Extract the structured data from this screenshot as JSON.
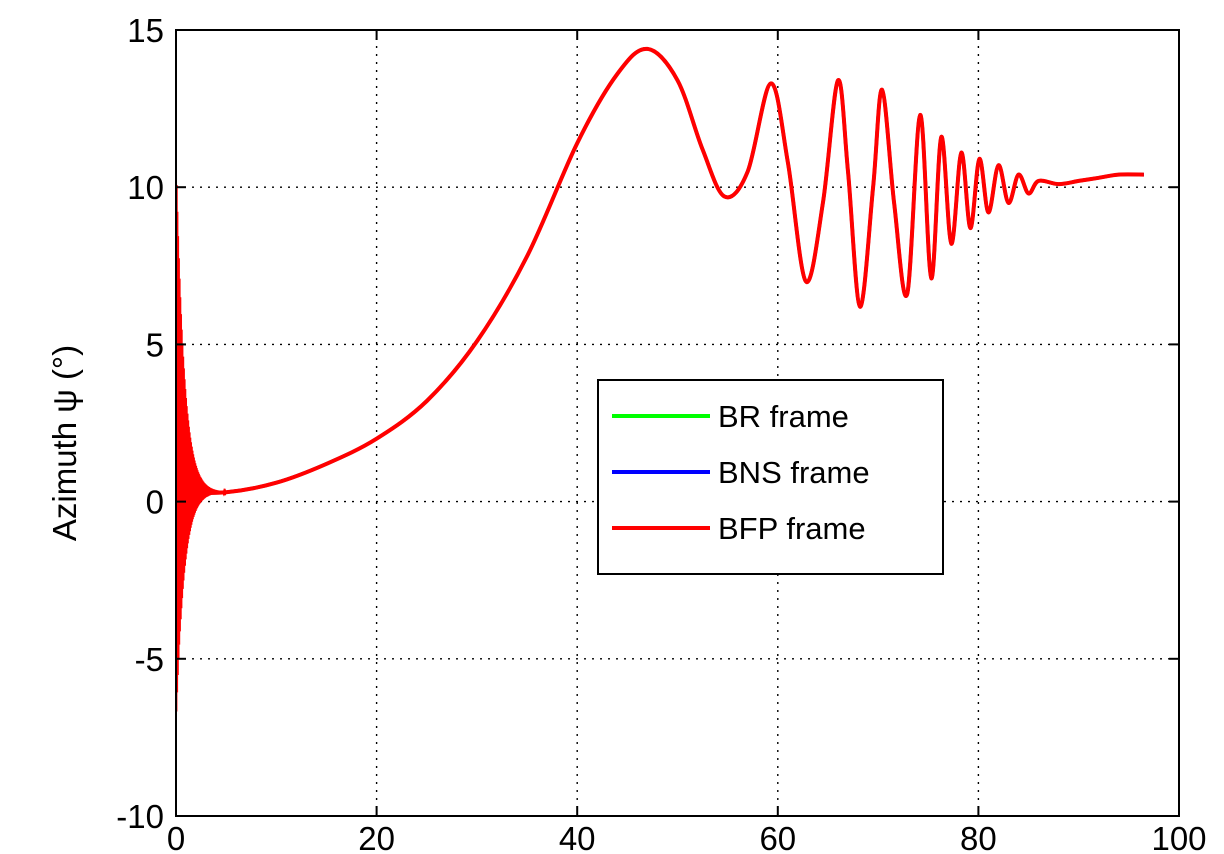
{
  "chart_data": {
    "type": "line",
    "title": "",
    "xlabel": "",
    "ylabel": "Azimuth ψ (°)",
    "xlim": [
      0,
      100
    ],
    "ylim": [
      -10,
      15
    ],
    "x_ticks": [
      0,
      20,
      40,
      60,
      80,
      100
    ],
    "y_ticks": [
      -10,
      -5,
      0,
      5,
      10,
      15
    ],
    "x_tick_labels": [
      "0",
      "20",
      "40",
      "60",
      "80",
      "100"
    ],
    "y_tick_labels": [
      "-10",
      "-5",
      "0",
      "5",
      "10",
      "15"
    ],
    "grid": true,
    "legend_position": "center",
    "colors": {
      "BR frame": "#00ff00",
      "BNS frame": "#0000ff",
      "BFP frame": "#ff0000"
    },
    "series": [
      {
        "name": "BR frame",
        "x": [
          0,
          5,
          10,
          15,
          20,
          25,
          30,
          35,
          40,
          44,
          47,
          50,
          52.5,
          54.7,
          57,
          59.3,
          61,
          62.8,
          64.5,
          66,
          67,
          68.2,
          69.5,
          70.4,
          71.6,
          72.9,
          74.2,
          75.3,
          76.3,
          77.3,
          78.3,
          79.2,
          80.1,
          81,
          82,
          83,
          84,
          85,
          86,
          88,
          90,
          92,
          94,
          96.5
        ],
        "y": [
          0.3,
          0.3,
          0.6,
          1.2,
          2.0,
          3.2,
          5.1,
          7.8,
          11.4,
          13.6,
          14.4,
          13.4,
          11.2,
          9.7,
          10.5,
          13.3,
          10.8,
          7.0,
          9.5,
          13.4,
          10.5,
          6.2,
          10.0,
          13.1,
          9.5,
          6.6,
          12.3,
          7.1,
          11.6,
          8.2,
          11.1,
          8.7,
          10.9,
          9.2,
          10.7,
          9.5,
          10.4,
          9.8,
          10.2,
          10.1,
          10.2,
          10.3,
          10.4,
          10.4
        ]
      },
      {
        "name": "BNS frame",
        "x": [
          0,
          5,
          10,
          15,
          20,
          25,
          30,
          35,
          40,
          44,
          47,
          50,
          52.5,
          54.7,
          57,
          59.3,
          61,
          62.8,
          64.5,
          66,
          67,
          68.2,
          69.5,
          70.4,
          71.6,
          72.9,
          74.2,
          75.3,
          76.3,
          77.3,
          78.3,
          79.2,
          80.1,
          81,
          82,
          83,
          84,
          85,
          86,
          88,
          90,
          92,
          94,
          96.5
        ],
        "y": [
          0.3,
          0.3,
          0.6,
          1.2,
          2.0,
          3.2,
          5.1,
          7.8,
          11.4,
          13.6,
          14.4,
          13.4,
          11.2,
          9.7,
          10.5,
          13.3,
          10.8,
          7.0,
          9.5,
          13.4,
          10.5,
          6.2,
          10.0,
          13.1,
          9.5,
          6.6,
          12.3,
          7.1,
          11.6,
          8.2,
          11.1,
          8.7,
          10.9,
          9.2,
          10.7,
          9.5,
          10.4,
          9.8,
          10.2,
          10.1,
          10.2,
          10.3,
          10.4,
          10.4
        ]
      },
      {
        "name": "BFP frame",
        "x": [
          0,
          5,
          10,
          15,
          20,
          25,
          30,
          35,
          40,
          44,
          47,
          50,
          52.5,
          54.7,
          57,
          59.3,
          61,
          62.8,
          64.5,
          66,
          67,
          68.2,
          69.5,
          70.4,
          71.6,
          72.9,
          74.2,
          75.3,
          76.3,
          77.3,
          78.3,
          79.2,
          80.1,
          81,
          82,
          83,
          84,
          85,
          86,
          88,
          90,
          92,
          94,
          96.5
        ],
        "y": [
          0.3,
          0.3,
          0.6,
          1.2,
          2.0,
          3.2,
          5.1,
          7.8,
          11.4,
          13.6,
          14.4,
          13.4,
          11.2,
          9.7,
          10.5,
          13.3,
          10.8,
          7.0,
          9.5,
          13.4,
          10.5,
          6.2,
          10.0,
          13.1,
          9.5,
          6.6,
          12.3,
          7.1,
          11.6,
          8.2,
          11.1,
          8.7,
          10.9,
          9.2,
          10.7,
          9.5,
          10.4,
          9.8,
          10.2,
          10.1,
          10.2,
          10.3,
          10.4,
          10.4
        ]
      }
    ],
    "initial_oscillation": {
      "series": "BFP frame",
      "x_range": [
        0,
        5
      ],
      "y_max": 11,
      "y_min": -7,
      "settles_to": 0.3
    }
  }
}
